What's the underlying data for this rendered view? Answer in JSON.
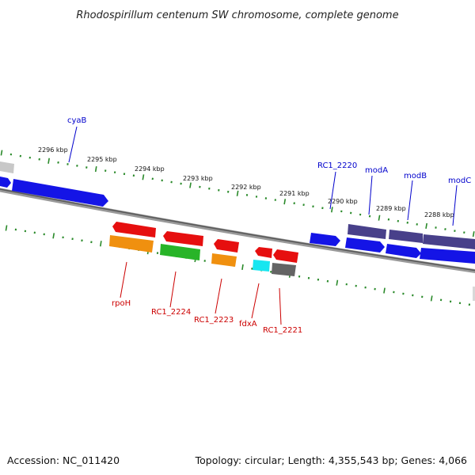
{
  "title": "Rhodospirillum centenum SW chromosome, complete genome",
  "footer": {
    "accession": "Accession: NC_011420",
    "summary": "Topology: circular; Length: 4,355,543 bp; Genes: 4,066"
  },
  "colors": {
    "forward_label": "#0000cc",
    "reverse_label": "#cc0000",
    "ruler_tick": "#2a8a2a",
    "backbone": "#7a7a7a",
    "blue": "#1414e6",
    "purple": "#48408a",
    "red": "#e60f0f",
    "orange": "#f0900f",
    "green": "#28b428",
    "cyan": "#17e6f0",
    "gray": "#646464",
    "silver": "#c8c8c8"
  },
  "scale_labels": [
    "2296 kbp",
    "2295 kbp",
    "2294 kbp",
    "2293 kbp",
    "2292 kbp",
    "2291 kbp",
    "2290 kbp",
    "2289 kbp",
    "2288 kbp"
  ],
  "forward_genes": [
    "cyaB",
    "RC1_2220",
    "modA",
    "modB",
    "modC"
  ],
  "reverse_genes": [
    "rpoH",
    "RC1_2224",
    "RC1_2223",
    "fdxA",
    "RC1_2221"
  ]
}
